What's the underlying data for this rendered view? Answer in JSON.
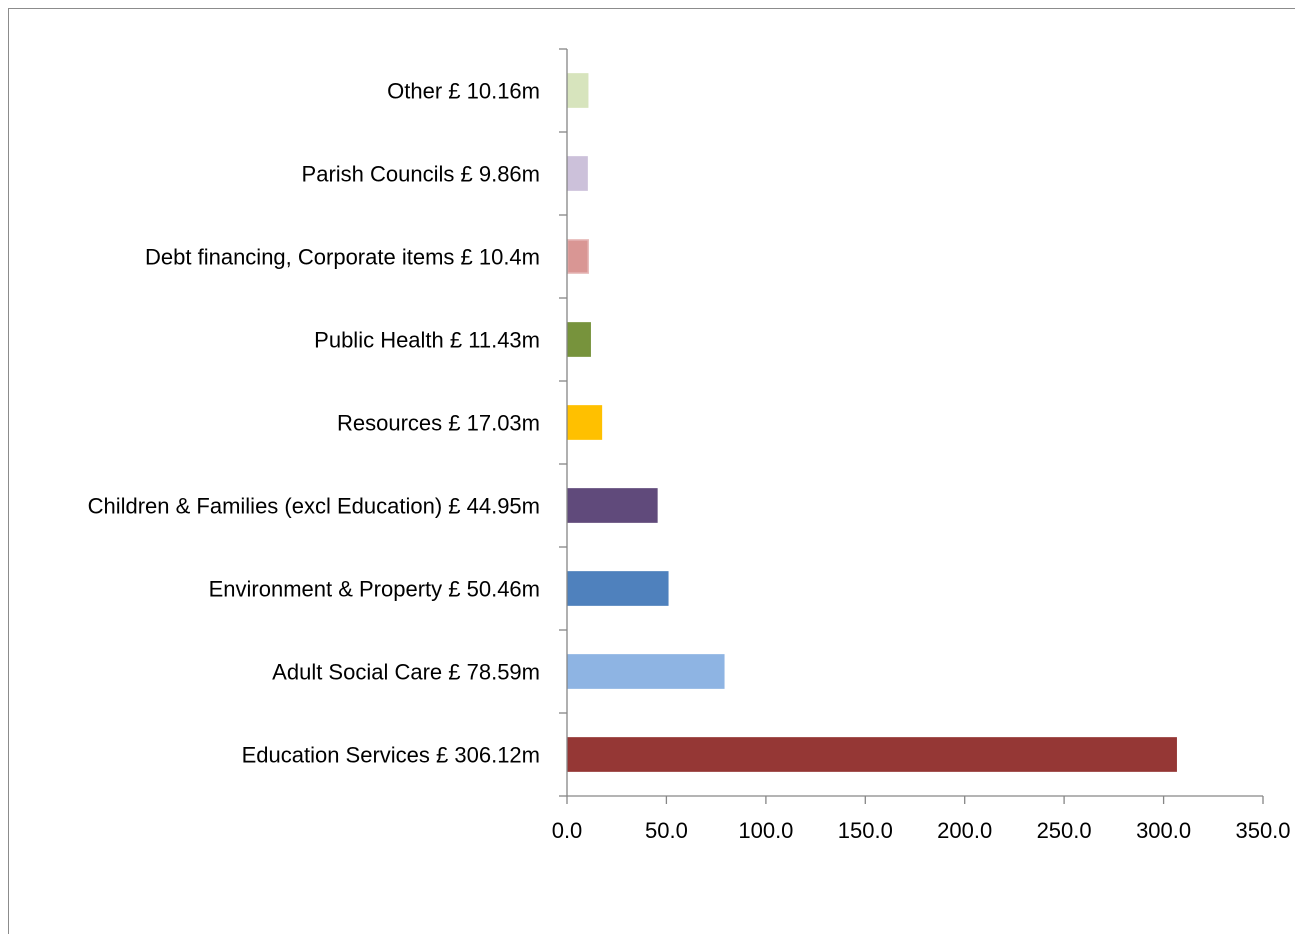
{
  "chart_data": {
    "type": "bar",
    "orientation": "horizontal",
    "title": "",
    "xlabel": "",
    "ylabel": "",
    "xlim": [
      0,
      350
    ],
    "x_ticks": [
      0,
      50,
      100,
      150,
      200,
      250,
      300,
      350
    ],
    "x_tick_labels": [
      "0.0",
      "50.0",
      "100.0",
      "150.0",
      "200.0",
      "250.0",
      "300.0",
      "350.0"
    ],
    "grid": false,
    "legend": "none",
    "categories": [
      "Education Services  £ 306.12m",
      "Adult Social Care  £ 78.59m",
      "Environment & Property  £ 50.46m",
      "Children & Families (excl Education)  £ 44.95m",
      "Resources  £ 17.03m",
      "Public Health  £ 11.43m",
      "Debt financing, Corporate items  £ 10.4m",
      "Parish Councils  £ 9.86m",
      "Other  £ 10.16m"
    ],
    "values": [
      306.12,
      78.59,
      50.46,
      44.95,
      17.03,
      11.43,
      10.4,
      9.86,
      10.16
    ],
    "colors": [
      "#953735",
      "#8eb4e3",
      "#4f81bd",
      "#604a7b",
      "#ffc000",
      "#77933c",
      "#d99694",
      "#ccc1da",
      "#d7e4bd"
    ],
    "bar_outline_colors": [
      "#953735",
      "#8eb4e3",
      "#4f81bd",
      "#604a7b",
      "#ffc000",
      "#77933c",
      "#e6b9b8",
      "#ccc1da",
      "#d7e4bd"
    ]
  }
}
